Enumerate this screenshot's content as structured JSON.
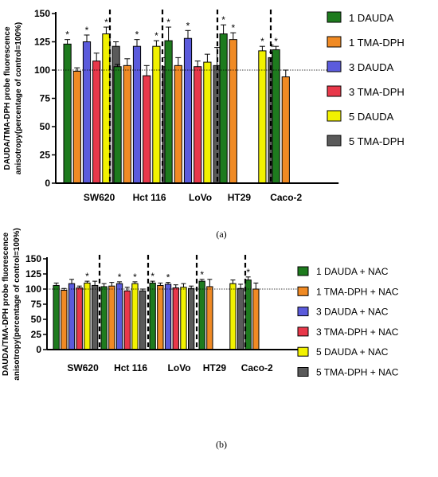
{
  "chart_data": [
    {
      "type": "bar",
      "panel_label": "(a)",
      "title": "",
      "xlabel": "",
      "ylabel_lines": [
        "DAUDA/TMA-DPH probe fluorescence",
        "anisotropy(percentage of control=100%)"
      ],
      "ylim": [
        0,
        150
      ],
      "yticks": [
        "0",
        "25",
        "50",
        "75",
        "100",
        "125",
        "150"
      ],
      "reference_line": 100,
      "categories": [
        "SW620",
        "Hct 116",
        "LoVo",
        "HT29",
        "Caco-2"
      ],
      "legend_position": "right",
      "series": [
        {
          "name": "1 DAUDA",
          "color": "#1e7b1e",
          "values": [
            123,
            103,
            126,
            132,
            118
          ],
          "errors": [
            4,
            2,
            12,
            8,
            3
          ],
          "significant": [
            true,
            false,
            true,
            true,
            true
          ]
        },
        {
          "name": "1 TMA-DPH",
          "color": "#f08a24",
          "values": [
            99,
            104,
            104,
            127,
            94
          ],
          "errors": [
            3,
            6,
            7,
            6,
            6
          ],
          "significant": [
            false,
            false,
            false,
            true,
            false
          ]
        },
        {
          "name": "3 DAUDA",
          "color": "#5b5bdc",
          "values": [
            125,
            121,
            128,
            null,
            null
          ],
          "errors": [
            6,
            6,
            7,
            null,
            null
          ],
          "significant": [
            true,
            true,
            true,
            false,
            false
          ]
        },
        {
          "name": "3 TMA-DPH",
          "color": "#e8384a",
          "values": [
            108,
            95,
            103,
            null,
            null
          ],
          "errors": [
            7,
            9,
            5,
            null,
            null
          ],
          "significant": [
            false,
            false,
            false,
            false,
            false
          ]
        },
        {
          "name": "5 DAUDA",
          "color": "#f2f200",
          "values": [
            132,
            121,
            107,
            117,
            null
          ],
          "errors": [
            6,
            5,
            7,
            4,
            null
          ],
          "significant": [
            true,
            true,
            false,
            true,
            false
          ]
        },
        {
          "name": "5 TMA-DPH",
          "color": "#5a5a5a",
          "values": [
            121,
            103,
            104,
            111,
            null
          ],
          "errors": [
            4,
            8,
            16,
            5,
            null
          ],
          "significant": [
            false,
            false,
            false,
            true,
            false
          ]
        }
      ]
    },
    {
      "type": "bar",
      "panel_label": "(b)",
      "title": "",
      "xlabel": "",
      "ylabel_lines": [
        "DAUDA/TMA-DPH probe fluorescence",
        "anisotropy(percentage of control=100%)"
      ],
      "ylim": [
        0,
        150
      ],
      "yticks": [
        "0",
        "25",
        "50",
        "75",
        "100",
        "125",
        "150"
      ],
      "reference_line": 100,
      "categories": [
        "SW620",
        "Hct 116",
        "LoVo",
        "HT29",
        "Caco-2"
      ],
      "legend_position": "right",
      "series": [
        {
          "name": "1 DAUDA + NAC",
          "color": "#1e7b1e",
          "values": [
            106,
            104,
            110,
            113,
            115
          ],
          "errors": [
            4,
            5,
            3,
            3,
            5
          ],
          "significant": [
            false,
            false,
            true,
            true,
            true
          ]
        },
        {
          "name": "1 TMA-DPH + NAC",
          "color": "#f08a24",
          "values": [
            98,
            105,
            106,
            104,
            100
          ],
          "errors": [
            3,
            6,
            4,
            12,
            10
          ],
          "significant": [
            false,
            false,
            false,
            false,
            false
          ]
        },
        {
          "name": "3 DAUDA + NAC",
          "color": "#5b5bdc",
          "values": [
            109,
            109,
            108,
            null,
            null
          ],
          "errors": [
            7,
            3,
            3,
            null,
            null
          ],
          "significant": [
            false,
            true,
            true,
            false,
            false
          ]
        },
        {
          "name": "3 TMA-DPH + NAC",
          "color": "#e8384a",
          "values": [
            102,
            97,
            102,
            null,
            null
          ],
          "errors": [
            3,
            6,
            5,
            null,
            null
          ],
          "significant": [
            false,
            false,
            false,
            false,
            false
          ]
        },
        {
          "name": "5 DAUDA + NAC",
          "color": "#f2f200",
          "values": [
            110,
            109,
            103,
            109,
            null
          ],
          "errors": [
            3,
            3,
            6,
            6,
            null
          ],
          "significant": [
            true,
            true,
            false,
            false,
            false
          ]
        },
        {
          "name": "5 TMA-DPH + NAC",
          "color": "#5a5a5a",
          "values": [
            106,
            97,
            101,
            101,
            null
          ],
          "errors": [
            7,
            3,
            4,
            7,
            null
          ],
          "significant": [
            false,
            false,
            false,
            false,
            false
          ]
        }
      ]
    }
  ]
}
